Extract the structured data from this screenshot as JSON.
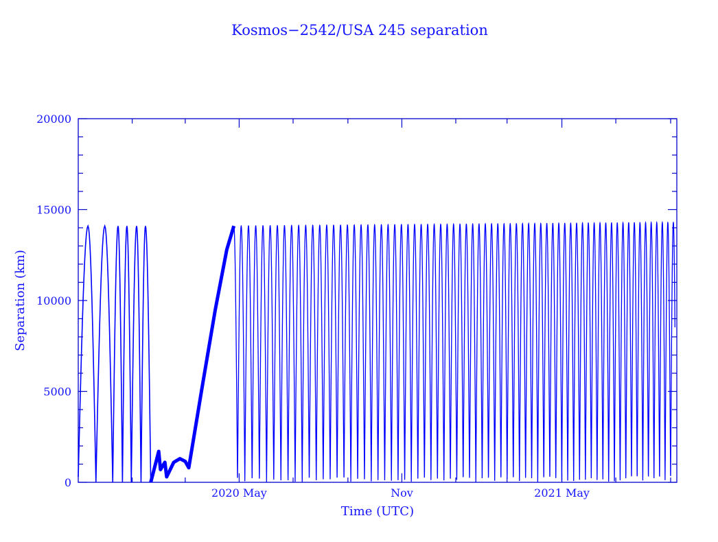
{
  "colors": {
    "data": "#0000ff",
    "axis": "#0000cc",
    "text": "#1414ff"
  },
  "chart_data": {
    "type": "line",
    "title": "Kosmos−2542/USA 245 separation",
    "xlabel": "Time (UTC)",
    "ylabel": "Separation (km)",
    "x_units": "days since 2019 Nov 1",
    "xlim": [
      0,
      677
    ],
    "ylim": [
      0,
      20000
    ],
    "grid": false,
    "yticks": [
      {
        "value": 0,
        "label": "0"
      },
      {
        "value": 5000,
        "label": "5000"
      },
      {
        "value": 10000,
        "label": "10000"
      },
      {
        "value": 15000,
        "label": "15000"
      },
      {
        "value": 20000,
        "label": "20000"
      }
    ],
    "y_minor_step": 1000,
    "xticks_major": [
      {
        "value": 182,
        "label": "2020 May"
      },
      {
        "value": 366,
        "label": "Nov"
      },
      {
        "value": 547,
        "label": "2021 May"
      }
    ],
    "xticks_minor": [
      61,
      121,
      243,
      305,
      427,
      485,
      608,
      670
    ],
    "series": [
      {
        "name": "early-oscillation",
        "points": [
          [
            0,
            300
          ],
          [
            11,
            14100
          ],
          [
            20,
            0
          ],
          [
            30,
            14100
          ],
          [
            39,
            0
          ],
          [
            45,
            14100
          ],
          [
            50,
            0
          ],
          [
            55,
            14100
          ],
          [
            60,
            0
          ],
          [
            66,
            14100
          ],
          [
            71,
            0
          ],
          [
            76,
            14100
          ],
          [
            82,
            0
          ]
        ]
      },
      {
        "name": "drift-band",
        "points": [
          [
            82,
            0
          ],
          [
            91,
            1700
          ],
          [
            93,
            700
          ],
          [
            98,
            1100
          ],
          [
            100,
            300
          ],
          [
            108,
            1100
          ],
          [
            115,
            1300
          ],
          [
            121,
            1150
          ],
          [
            125,
            800
          ],
          [
            140,
            5200
          ],
          [
            155,
            9500
          ],
          [
            168,
            12800
          ],
          [
            176,
            14100
          ]
        ]
      },
      {
        "name": "regular-oscillation",
        "start_day": 176,
        "end_day": 675,
        "trough_km": 0,
        "peak_km_start": 14100,
        "peak_km_end": 14300,
        "period_days_start": 8.3,
        "period_days_end": 6.2
      }
    ]
  }
}
